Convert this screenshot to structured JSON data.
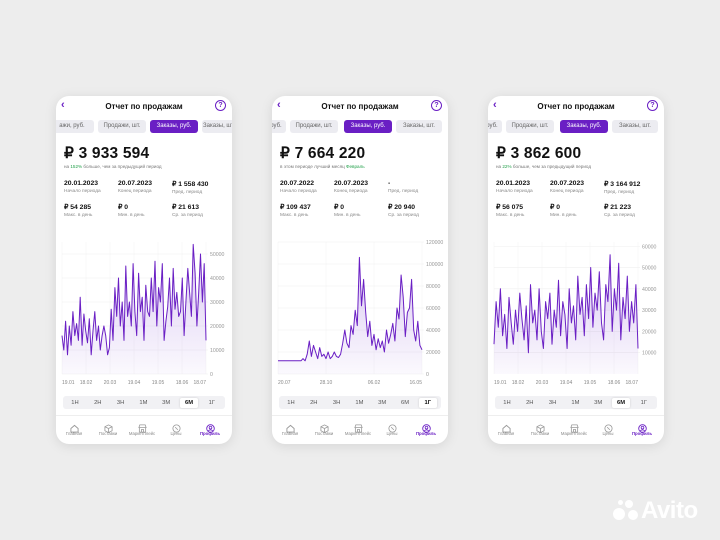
{
  "accent_color": "#6a1fc4",
  "positive_color": "#22a04a",
  "screens": [
    {
      "title": "Отчет по продажам",
      "tabs": [
        "Заказы, руб.",
        "Продажи, шт.",
        "Заказы, руб.",
        "Заказы, шт."
      ],
      "tab_visible": [
        "ажи, руб.",
        "Продажи, шт.",
        "Заказы, руб.",
        "Заказы, шт."
      ],
      "active_tab": 2,
      "total": "₽ 3 933 594",
      "sub_pre": "на ",
      "sub_hl": "152%",
      "sub_post": " больше, чем за предыдущий период",
      "stats": [
        {
          "value": "20.01.2023",
          "label": "Начало периода"
        },
        {
          "value": "20.07.2023",
          "label": "Конец периода"
        },
        {
          "value": "₽ 1 558 430",
          "label": "Пред. период"
        },
        {
          "value": "₽ 54 285",
          "label": "Макс. в день"
        },
        {
          "value": "₽ 0",
          "label": "Мин. в день"
        },
        {
          "value": "₽ 21 613",
          "label": "Ср. за период"
        }
      ],
      "chart_data": {
        "type": "area",
        "yticks": [
          "50000",
          "40000",
          "30000",
          "20000",
          "10000",
          "0"
        ],
        "ylim": [
          0,
          55000
        ],
        "xticks": [
          "19.01",
          "18.02",
          "20.03",
          "19.04",
          "19.05",
          "18.06",
          "18.07"
        ],
        "values": [
          16000,
          10000,
          22000,
          8000,
          20000,
          12000,
          26000,
          16000,
          21000,
          14000,
          32000,
          12000,
          25000,
          18000,
          13000,
          23000,
          8000,
          18000,
          26000,
          14000,
          20000,
          10000,
          16000,
          20000,
          16000,
          8000,
          11000,
          27000,
          14000,
          36000,
          24000,
          40000,
          20000,
          30000,
          14000,
          45000,
          24000,
          30000,
          20000,
          46000,
          26000,
          16000,
          42000,
          26000,
          32000,
          14000,
          37000,
          26000,
          24000,
          40000,
          26000,
          47000,
          20000,
          36000,
          30000,
          46000,
          14000,
          22000,
          28000,
          40000,
          20000,
          44000,
          27000,
          34000,
          24000,
          26000,
          40000,
          16000,
          30000,
          44000,
          34000,
          24000,
          54000,
          42000,
          20000,
          34000,
          50000,
          30000,
          46000,
          14000
        ]
      },
      "ranges": [
        "1Н",
        "2Н",
        "3Н",
        "1М",
        "3М",
        "6М",
        "1Г"
      ],
      "active_range": 5,
      "nav": [
        "Главная",
        "Поставки",
        "Маркетплейс",
        "Цены",
        "Профиль"
      ],
      "active_nav": 4
    },
    {
      "title": "Отчет по продажам",
      "tabs": [
        "Заказы, руб.",
        "Продажи, шт.",
        "Заказы, руб.",
        "Заказы, шт."
      ],
      "tab_visible": [
        "руб.",
        "Продажи, шт.",
        "Заказы, руб.",
        "Заказы, шт."
      ],
      "active_tab": 2,
      "total": "₽ 7 664 220",
      "sub_pre": "в этом периоде лучший месяц ",
      "sub_hl": "Февраль",
      "sub_post": "",
      "stats": [
        {
          "value": "20.07.2022",
          "label": "Начало периода"
        },
        {
          "value": "20.07.2023",
          "label": "Конец периода"
        },
        {
          "value": "-",
          "label": "Пред. период"
        },
        {
          "value": "₽ 109 437",
          "label": "Макс. в день"
        },
        {
          "value": "₽ 0",
          "label": "Мин. в день"
        },
        {
          "value": "₽ 20 940",
          "label": "Ср. за период"
        }
      ],
      "chart_data": {
        "type": "area",
        "yticks": [
          "120000",
          "100000",
          "80000",
          "60000",
          "40000",
          "20000",
          "0"
        ],
        "ylim": [
          0,
          120000
        ],
        "xticks": [
          "20.07",
          "28.10",
          "06.02",
          "16.05"
        ],
        "values": [
          12000,
          12000,
          12000,
          12000,
          12000,
          12000,
          12000,
          12000,
          12000,
          12000,
          12000,
          12000,
          14000,
          12000,
          18000,
          30000,
          16000,
          26000,
          20000,
          14000,
          24000,
          16000,
          18000,
          14000,
          20000,
          14000,
          16000,
          20000,
          16000,
          15000,
          18000,
          28000,
          40000,
          28000,
          24000,
          44000,
          36000,
          58000,
          44000,
          106000,
          62000,
          86000,
          56000,
          34000,
          48000,
          26000,
          36000,
          22000,
          32000,
          24000,
          30000,
          20000,
          40000,
          28000,
          36000,
          46000,
          30000,
          60000,
          50000,
          90000,
          70000,
          34000,
          56000,
          60000,
          86000,
          40000,
          30000,
          48000,
          26000,
          22000
        ]
      },
      "ranges": [
        "1Н",
        "2Н",
        "3Н",
        "1М",
        "3М",
        "6М",
        "1Г"
      ],
      "active_range": 6,
      "nav": [
        "Главная",
        "Поставки",
        "Маркетплейс",
        "Цены",
        "Профиль"
      ],
      "active_nav": 4
    },
    {
      "title": "Отчет по продажам",
      "tabs": [
        "Заказы, руб.",
        "Продажи, шт.",
        "Заказы, руб.",
        "Заказы, шт."
      ],
      "tab_visible": [
        "руб.",
        "Продажи, шт.",
        "Заказы, руб.",
        "Заказы, шт."
      ],
      "active_tab": 2,
      "total": "₽ 3 862 600",
      "sub_pre": "на ",
      "sub_hl": "22%",
      "sub_post": " больше, чем за предыдущий период",
      "stats": [
        {
          "value": "20.01.2023",
          "label": "Начало периода"
        },
        {
          "value": "20.07.2023",
          "label": "Конец периода"
        },
        {
          "value": "₽ 3 164 912",
          "label": "Пред. период"
        },
        {
          "value": "₽ 56 075",
          "label": "Макс. в день"
        },
        {
          "value": "₽ 0",
          "label": "Мин. в день"
        },
        {
          "value": "₽ 21 223",
          "label": "Ср. за период"
        }
      ],
      "chart_data": {
        "type": "area",
        "yticks": [
          "60000",
          "50000",
          "40000",
          "30000",
          "20000",
          "10000"
        ],
        "ylim": [
          0,
          62000
        ],
        "xticks": [
          "19.01",
          "18.02",
          "20.03",
          "19.04",
          "19.05",
          "18.06",
          "18.07"
        ],
        "values": [
          14000,
          34000,
          22000,
          40000,
          18000,
          28000,
          12000,
          36000,
          24000,
          14000,
          30000,
          20000,
          38000,
          26000,
          16000,
          32000,
          10000,
          42000,
          24000,
          30000,
          16000,
          40000,
          20000,
          12000,
          34000,
          26000,
          38000,
          14000,
          30000,
          22000,
          44000,
          18000,
          34000,
          28000,
          12000,
          40000,
          24000,
          32000,
          16000,
          46000,
          28000,
          36000,
          18000,
          42000,
          26000,
          50000,
          22000,
          38000,
          30000,
          48000,
          24000,
          16000,
          42000,
          34000,
          56000,
          20000,
          40000,
          30000,
          52000,
          16000,
          36000,
          26000,
          46000,
          20000,
          34000,
          24000,
          42000,
          12000
        ]
      },
      "ranges": [
        "1Н",
        "2Н",
        "3Н",
        "1М",
        "3М",
        "6М",
        "1Г"
      ],
      "active_range": 5,
      "nav": [
        "Главная",
        "Поставки",
        "Маркетплейс",
        "Цены",
        "Профиль"
      ],
      "active_nav": 4
    }
  ],
  "watermark": "Avito"
}
